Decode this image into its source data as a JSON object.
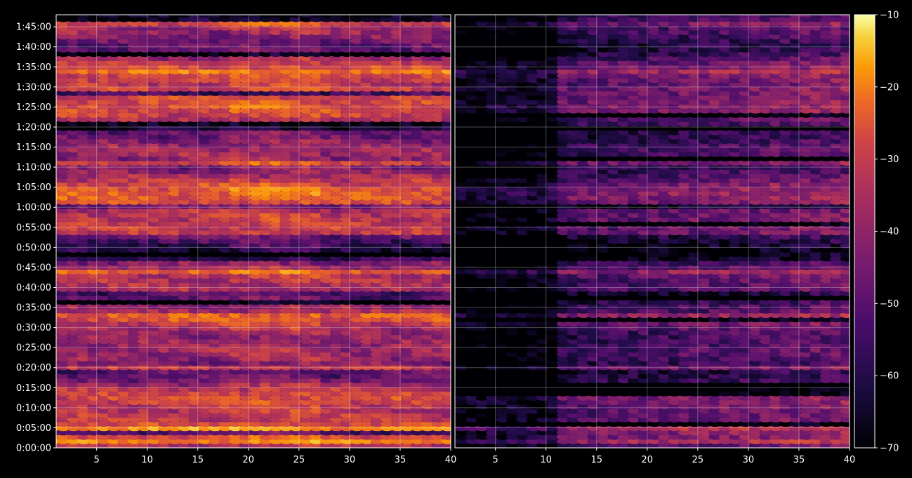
{
  "chart_data": {
    "type": "heatmap",
    "title": "",
    "layout": "two panels side by side sharing y axis, with colorbar on right",
    "xlabel": "",
    "ylabel": "",
    "ylim": [
      "0:00:00",
      "1:48:00"
    ],
    "y_tick_labels": [
      "0:00:00",
      "0:05:00",
      "0:10:00",
      "0:15:00",
      "0:20:00",
      "0:25:00",
      "0:30:00",
      "0:35:00",
      "0:40:00",
      "0:45:00",
      "0:50:00",
      "0:55:00",
      "1:00:00",
      "1:05:00",
      "1:10:00",
      "1:15:00",
      "1:20:00",
      "1:25:00",
      "1:30:00",
      "1:35:00",
      "1:40:00",
      "1:45:00"
    ],
    "grid": true,
    "colormap": "inferno",
    "panels": [
      {
        "name": "left",
        "xlim": [
          1,
          40
        ],
        "x_tick_labels": [
          "5",
          "10",
          "15",
          "20",
          "25",
          "30",
          "35",
          "40"
        ],
        "intensity": "high",
        "hotspots_time": [
          "0:01:00",
          "0:04:30",
          "0:19:30",
          "0:43:30",
          "0:57:00",
          "0:59:30",
          "1:10:30",
          "1:19:30",
          "1:28:30",
          "1:33:00",
          "1:45:30"
        ]
      },
      {
        "name": "right",
        "xlim": [
          1,
          40
        ],
        "x_tick_labels": [
          "5",
          "10",
          "15",
          "20",
          "25",
          "30",
          "35",
          "40"
        ],
        "intensity": "low",
        "hotspots_time": [
          "0:04:30",
          "0:19:30",
          "0:43:30",
          "0:57:00",
          "0:59:30",
          "1:19:30",
          "1:28:30"
        ]
      }
    ],
    "colorbar": {
      "range": [
        -70,
        -10
      ],
      "ticks": [
        "−10",
        "−20",
        "−30",
        "−40",
        "−50",
        "−60",
        "−70"
      ]
    }
  }
}
